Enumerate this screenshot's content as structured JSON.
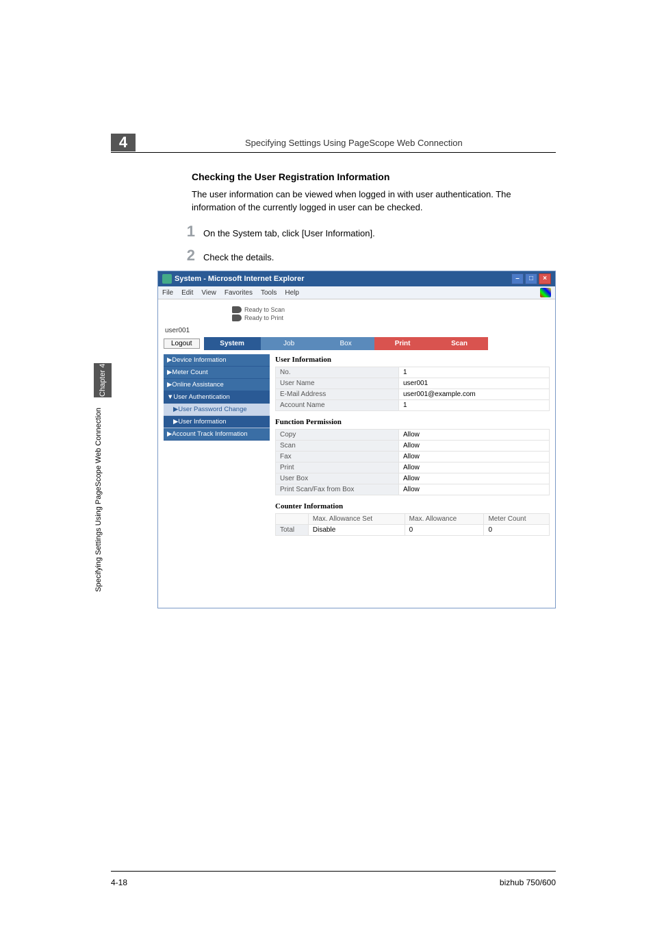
{
  "doc": {
    "section_number": "4",
    "header_title": "Specifying Settings Using PageScope Web Connection",
    "subheading": "Checking the User Registration Information",
    "intro_text": "The user information can be viewed when logged in with user authentication. The information of the currently logged in user can be checked.",
    "step1": "On the System tab, click [User Information].",
    "step2": "Check the details.",
    "sidetab": "Chapter 4",
    "sidetext": "Specifying Settings Using PageScope Web Connection",
    "page_num": "4-18",
    "product": "bizhub 750/600"
  },
  "ie": {
    "title": "System - Microsoft Internet Explorer",
    "menu": [
      "File",
      "Edit",
      "View",
      "Favorites",
      "Tools",
      "Help"
    ],
    "status_scan": "Ready to Scan",
    "status_print": "Ready to Print",
    "username": "user001",
    "logout": "Logout",
    "tabs": {
      "system": "System",
      "job": "Job",
      "box": "Box",
      "print": "Print",
      "scan": "Scan"
    },
    "sidebar": {
      "device": "▶Device Information",
      "meter": "▶Meter Count",
      "online": "▶Online Assistance",
      "userauth": "▼User Authentication",
      "pwchange": "▶User Password Change",
      "userinfo": "▶User Information",
      "accttrack": "▶Account Track Information"
    },
    "pane": {
      "title_userinfo": "User Information",
      "fields": {
        "no_lbl": "No.",
        "no_val": "1",
        "username_lbl": "User Name",
        "username_val": "user001",
        "email_lbl": "E-Mail Address",
        "email_val": "user001@example.com",
        "acct_lbl": "Account Name",
        "acct_val": "1"
      },
      "title_funcperm": "Function Permission",
      "perms": {
        "copy_lbl": "Copy",
        "copy_val": "Allow",
        "scan_lbl": "Scan",
        "scan_val": "Allow",
        "fax_lbl": "Fax",
        "fax_val": "Allow",
        "print_lbl": "Print",
        "print_val": "Allow",
        "userbox_lbl": "User Box",
        "userbox_val": "Allow",
        "psfb_lbl": "Print Scan/Fax from Box",
        "psfb_val": "Allow"
      },
      "title_counter": "Counter Information",
      "counter_hdr": {
        "blank": "",
        "set": "Max. Allowance Set",
        "max": "Max. Allowance",
        "meter": "Meter Count"
      },
      "counter_row": {
        "total": "Total",
        "set": "Disable",
        "max": "0",
        "meter": "0"
      }
    }
  }
}
